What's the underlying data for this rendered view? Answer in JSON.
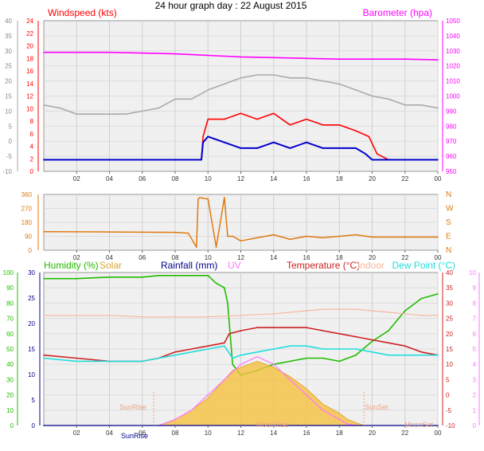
{
  "title": "24 hour graph day : 22 August 2015",
  "colors": {
    "windspeed": "#ff0000",
    "windavg": "#0000cc",
    "barometer": "#ff00ff",
    "temperature_outdoor": "#aaaaaa",
    "winddir": "#e07a10",
    "humidity": "#22bb00",
    "solar": "#f5c040",
    "rainfall": "#00008b",
    "uv": "#ff77ff",
    "temperature": "#cc2222",
    "indoor": "#f4b8a0",
    "dewpoint": "#22dddd"
  },
  "chart_data": [
    {
      "type": "line",
      "panel": "wind-pressure",
      "x_ticks": [
        "02",
        "04",
        "06",
        "08",
        "10",
        "12",
        "14",
        "16",
        "18",
        "20",
        "22",
        "00"
      ],
      "labels": {
        "left_title": "Windspeed (kts)",
        "right_title": "Barometer (hpa)"
      },
      "y_left_outer": {
        "ticks": [
          "40",
          "35",
          "30",
          "25",
          "20",
          "15",
          "10",
          "5",
          "0",
          "-5",
          "-10"
        ],
        "range": [
          -10,
          40
        ]
      },
      "y_left_inner": {
        "ticks": [
          "24",
          "22",
          "20",
          "18",
          "16",
          "14",
          "12",
          "10",
          "8",
          "6",
          "4",
          "2",
          "0"
        ],
        "range": [
          -2,
          24
        ]
      },
      "y_right": {
        "ticks": [
          "1050",
          "1040",
          "1030",
          "1020",
          "1010",
          "1000",
          "990",
          "980",
          "970",
          "960",
          "950"
        ],
        "range": [
          950,
          1050
        ]
      },
      "series": [
        {
          "key": "barometer",
          "axis": "right",
          "x": [
            0,
            2,
            4,
            6,
            8,
            10,
            12,
            14,
            16,
            18,
            20,
            22,
            24
          ],
          "y": [
            1029,
            1029,
            1029,
            1028.5,
            1028,
            1027,
            1026,
            1025.5,
            1025,
            1024.5,
            1024.5,
            1024.5,
            1024
          ]
        },
        {
          "key": "temperature_outdoor",
          "axis": "left_outer",
          "x": [
            0,
            1,
            2,
            4,
            5,
            6,
            7,
            8,
            9,
            10,
            11,
            12,
            13,
            14,
            15,
            16,
            17,
            18,
            19,
            20,
            21,
            22,
            23,
            24
          ],
          "y": [
            12,
            11,
            9,
            9,
            9,
            10,
            11,
            14,
            14,
            17,
            19,
            21,
            22,
            22,
            21,
            21,
            20,
            19,
            17,
            15,
            14,
            12,
            12,
            11
          ]
        },
        {
          "key": "windspeed",
          "axis": "left_inner",
          "x": [
            0,
            9.6,
            9.7,
            10,
            11,
            12,
            13,
            14,
            15,
            16,
            17,
            18,
            19,
            19.8,
            20.3,
            21,
            24
          ],
          "y": [
            0,
            0,
            4,
            7,
            7,
            8,
            7,
            8,
            6,
            7,
            6,
            6,
            5,
            4,
            1,
            0,
            0
          ]
        },
        {
          "key": "windavg",
          "axis": "left_inner",
          "x": [
            0,
            9.6,
            9.7,
            10,
            11,
            12,
            13,
            14,
            15,
            16,
            17,
            18,
            19,
            19.6,
            20,
            24
          ],
          "y": [
            0,
            0,
            3,
            4,
            3,
            2,
            2,
            3,
            2,
            3,
            2,
            2,
            2,
            1,
            0,
            0
          ]
        }
      ]
    },
    {
      "type": "line",
      "panel": "wind-direction",
      "x_ticks": [
        "02",
        "04",
        "06",
        "08",
        "10",
        "12",
        "14",
        "16",
        "18",
        "20",
        "22",
        "00"
      ],
      "y_left": {
        "ticks": [
          "360",
          "270",
          "180",
          "90",
          "0"
        ],
        "range": [
          0,
          360
        ]
      },
      "y_right": {
        "ticks": [
          "N",
          "W",
          "S",
          "E",
          "N"
        ]
      },
      "series": [
        {
          "key": "winddir",
          "x": [
            0,
            4,
            8,
            8.8,
            9.3,
            9.4,
            9.5,
            10,
            10.5,
            11,
            11.2,
            11.5,
            12,
            13,
            14,
            15,
            16,
            17,
            18,
            19,
            20,
            22,
            24
          ],
          "y": [
            120,
            118,
            115,
            110,
            20,
            330,
            340,
            330,
            20,
            340,
            90,
            90,
            60,
            80,
            100,
            70,
            90,
            80,
            90,
            100,
            85,
            85,
            85
          ]
        }
      ]
    },
    {
      "type": "area",
      "panel": "climate",
      "x_ticks": [
        "02",
        "04",
        "06",
        "08",
        "10",
        "12",
        "14",
        "16",
        "18",
        "20",
        "22",
        "00"
      ],
      "labels": {
        "humidity": "Humidity (%)",
        "solar": "Solar",
        "rainfall": "Rainfall (mm)",
        "uv": "UV",
        "temperature": "Temperature (°C)",
        "indoor": "Indoor",
        "dewpoint": "Dew Point (°C)",
        "sunrise": "SunRise",
        "sunset": "SunSet",
        "moonrise": "MoonRise",
        "moonset": "MoonSet"
      },
      "y_humidity": {
        "ticks": [
          "100",
          "90",
          "80",
          "70",
          "60",
          "50",
          "40",
          "30",
          "20",
          "10",
          "0"
        ],
        "range": [
          0,
          100
        ]
      },
      "y_rain": {
        "ticks": [
          "30",
          "25",
          "20",
          "15",
          "10",
          "5",
          "0"
        ],
        "range": [
          0,
          30
        ]
      },
      "y_temp": {
        "ticks": [
          "40",
          "35",
          "30",
          "25",
          "20",
          "15",
          "10",
          "5",
          "0",
          "-5",
          "-10"
        ],
        "range": [
          -10,
          40
        ]
      },
      "y_uv": {
        "ticks": [
          "10",
          "9",
          "8",
          "7",
          "6",
          "5",
          "4",
          "3",
          "2",
          "1",
          "0"
        ],
        "range": [
          0,
          10
        ]
      },
      "series": [
        {
          "key": "humidity",
          "axis": "humidity",
          "x": [
            0,
            2,
            4,
            6,
            7,
            8,
            9,
            10,
            10.5,
            11,
            11.2,
            11.5,
            12,
            13,
            14,
            15,
            16,
            17,
            18,
            19,
            20,
            21,
            22,
            23,
            24
          ],
          "y": [
            96,
            96,
            97,
            97,
            98,
            98,
            98,
            98,
            93,
            90,
            80,
            40,
            33,
            36,
            40,
            42,
            44,
            44,
            42,
            46,
            55,
            62,
            75,
            83,
            86
          ]
        },
        {
          "key": "temperature",
          "axis": "temp",
          "x": [
            0,
            2,
            4,
            6,
            7,
            8,
            9,
            10,
            11,
            11.3,
            12,
            13,
            14,
            15,
            16,
            17,
            18,
            19,
            20,
            21,
            22,
            23,
            24
          ],
          "y": [
            13,
            12,
            11,
            11,
            12,
            14,
            15,
            16,
            17,
            20,
            21,
            22,
            22,
            22,
            22,
            21,
            20,
            19,
            18,
            17,
            16,
            14,
            13
          ]
        },
        {
          "key": "dewpoint",
          "axis": "temp",
          "x": [
            0,
            2,
            4,
            6,
            7,
            8,
            9,
            10,
            11,
            11.5,
            12,
            13,
            14,
            15,
            16,
            17,
            18,
            19,
            20,
            21,
            22,
            23,
            24
          ],
          "y": [
            12,
            11,
            11,
            11,
            12,
            13,
            14,
            15,
            16,
            12,
            13,
            14,
            15,
            16,
            16,
            15,
            15,
            15,
            14,
            13,
            13,
            13,
            13
          ]
        },
        {
          "key": "indoor",
          "axis": "temp",
          "x": [
            0,
            2,
            4,
            6,
            8,
            10,
            12,
            14,
            15,
            16,
            17,
            18,
            19,
            20,
            21,
            22,
            23,
            24
          ],
          "y": [
            26,
            26,
            26,
            25.5,
            25.5,
            25.5,
            26,
            26.5,
            27,
            27.5,
            28,
            28,
            28,
            27.5,
            27,
            26.5,
            26,
            26
          ]
        },
        {
          "key": "solar",
          "axis": "temp",
          "x": [
            7,
            8,
            9,
            10,
            10.5,
            11,
            11.5,
            12,
            13,
            14,
            15,
            16,
            17,
            18,
            18.5,
            19,
            19.5
          ],
          "y": [
            -10,
            -8,
            -5,
            -1,
            2,
            5,
            8,
            9,
            11,
            9,
            6,
            2,
            -3,
            -6,
            -8,
            -9,
            -10
          ]
        },
        {
          "key": "uv",
          "axis": "uv",
          "x": [
            7,
            8,
            9,
            10,
            11,
            12,
            13,
            14,
            15,
            16,
            17,
            18,
            18.5,
            19
          ],
          "y": [
            0,
            0.4,
            1,
            2,
            3,
            4,
            4.5,
            4,
            3,
            2,
            1,
            0.4,
            0.1,
            0
          ]
        },
        {
          "key": "rainfall",
          "axis": "rain",
          "x": [
            0,
            24
          ],
          "y": [
            0,
            0
          ]
        }
      ]
    }
  ]
}
